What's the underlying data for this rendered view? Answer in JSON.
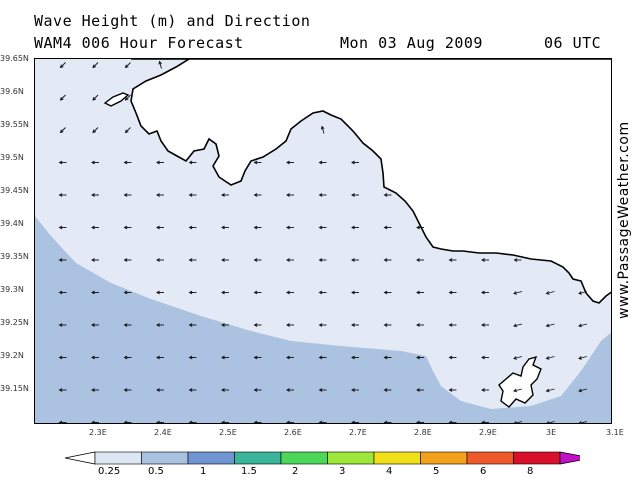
{
  "title": {
    "line1": "Wave Height (m) and Direction",
    "line2": "WAM4 006 Hour Forecast",
    "date": "Mon 03 Aug 2009",
    "time": "06 UTC"
  },
  "watermark": "www.PassageWeather.com",
  "axes": {
    "y_labels": [
      "39.65N",
      "39.6N",
      "39.55N",
      "39.5N",
      "39.45N",
      "39.4N",
      "39.35N",
      "39.3N",
      "39.25N",
      "39.2N",
      "39.15N"
    ],
    "x_labels": [
      "2.3E",
      "2.4E",
      "2.5E",
      "2.6E",
      "2.7E",
      "2.8E",
      "2.9E",
      "3E",
      "3.1E"
    ]
  },
  "colorbar": {
    "labels": [
      "0.25",
      "0.5",
      "1",
      "1.5",
      "2",
      "3",
      "4",
      "5",
      "6",
      "8"
    ],
    "colors": [
      "#dde6f3",
      "#a9c2e0",
      "#6f95d2",
      "#3ab59a",
      "#4cd65a",
      "#9ee63a",
      "#f0e01a",
      "#f2a21a",
      "#ef5a2a",
      "#d8102a",
      "#c010c8"
    ]
  },
  "map_colors": {
    "light": "#e3eaf6",
    "medium": "#abc3e0",
    "land": "#ffffff",
    "coast": "#000000"
  }
}
